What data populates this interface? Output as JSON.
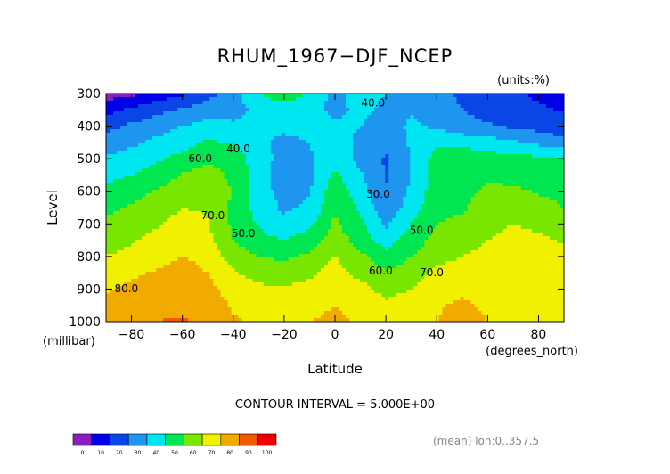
{
  "chart_data": {
    "type": "heatmap",
    "title": "RHUM_1967−DJF_NCEP",
    "units_label": "(units:%)",
    "ylabel": "Level",
    "y_unit_label": "(millibar)",
    "xlabel": "Latitude",
    "x_unit_label": "(degrees_north)",
    "contour_interval_text": "CONTOUR INTERVAL = 5.000E+00",
    "footnote": "(mean) lon:0..357.5",
    "x_ticks": [
      -80,
      -60,
      -40,
      -20,
      0,
      20,
      40,
      60,
      80
    ],
    "x_tick_labels": [
      "−80",
      "−60",
      "−40",
      "−20",
      "0",
      "20",
      "40",
      "60",
      "80"
    ],
    "y_ticks": [
      300,
      400,
      500,
      600,
      700,
      800,
      900,
      1000
    ],
    "y_tick_labels": [
      "300",
      "400",
      "500",
      "600",
      "700",
      "800",
      "900",
      "1000"
    ],
    "xlim": [
      -90,
      90
    ],
    "ylim": [
      1000,
      300
    ],
    "levels": [
      0,
      10,
      20,
      30,
      40,
      50,
      60,
      70,
      80,
      90,
      100
    ],
    "colorbar_labels": [
      "0",
      "10",
      "20",
      "30",
      "40",
      "50",
      "60",
      "70",
      "80",
      "90",
      "100"
    ],
    "colors": [
      "#8a1fc0",
      "#0000e6",
      "#0a46e6",
      "#1e96f0",
      "#00e6f0",
      "#00e650",
      "#78e600",
      "#f0f000",
      "#f0aa00",
      "#f05a00",
      "#f00000"
    ],
    "contour_labels": [
      {
        "text": "40.0",
        "lat": -38,
        "lev": 480
      },
      {
        "text": "40.0",
        "lat": 15,
        "lev": 340
      },
      {
        "text": "30.0",
        "lat": 17,
        "lev": 620
      },
      {
        "text": "50.0",
        "lat": -36,
        "lev": 740
      },
      {
        "text": "50.0",
        "lat": 34,
        "lev": 730
      },
      {
        "text": "60.0",
        "lat": -53,
        "lev": 510
      },
      {
        "text": "60.0",
        "lat": 18,
        "lev": 855
      },
      {
        "text": "70.0",
        "lat": -48,
        "lev": 685
      },
      {
        "text": "70.0",
        "lat": 38,
        "lev": 860
      },
      {
        "text": "80.0",
        "lat": -82,
        "lev": 910
      }
    ],
    "lat_grid": [
      -90,
      -80,
      -70,
      -60,
      -50,
      -40,
      -30,
      -20,
      -10,
      0,
      10,
      20,
      30,
      40,
      50,
      60,
      70,
      80,
      90
    ],
    "lev_grid": [
      300,
      350,
      400,
      450,
      500,
      550,
      600,
      650,
      700,
      750,
      800,
      850,
      900,
      950,
      1000
    ],
    "values": [
      [
        5,
        8,
        14,
        18,
        26,
        36,
        50,
        55,
        49,
        36,
        45,
        40,
        37,
        33,
        28,
        25,
        22,
        18,
        15
      ],
      [
        16,
        22,
        27,
        31,
        36,
        36,
        43,
        46,
        42,
        38,
        42,
        38,
        39,
        34,
        30,
        27,
        24,
        22,
        19
      ],
      [
        27,
        32,
        36,
        40,
        44,
        42,
        41,
        43,
        44,
        42,
        40,
        35,
        42,
        38,
        33,
        31,
        28,
        26,
        24
      ],
      [
        34,
        38,
        42,
        46,
        51,
        49,
        43,
        37,
        40,
        44,
        38,
        31,
        42,
        49,
        47,
        45,
        41,
        38,
        32
      ],
      [
        41,
        45,
        49,
        53,
        58,
        56,
        45,
        36,
        39,
        47,
        37,
        29,
        40,
        54,
        56,
        55,
        53,
        52,
        53
      ],
      [
        47,
        50,
        54,
        61,
        64,
        58,
        44,
        35,
        38,
        52,
        41,
        29,
        40,
        55,
        58,
        59,
        57,
        55,
        58
      ],
      [
        53,
        56,
        61,
        66,
        68,
        59,
        45,
        36,
        39,
        56,
        44,
        30,
        42,
        56,
        58,
        61,
        62,
        59,
        58
      ],
      [
        58,
        61,
        66,
        70,
        69,
        58,
        46,
        38,
        42,
        59,
        48,
        33,
        45,
        57,
        59,
        64,
        66,
        63,
        60
      ],
      [
        62,
        65,
        69,
        73,
        71,
        58,
        49,
        43,
        48,
        62,
        52,
        38,
        50,
        60,
        62,
        67,
        70,
        68,
        65
      ],
      [
        66,
        69,
        73,
        76,
        73,
        60,
        53,
        50,
        55,
        65,
        56,
        45,
        55,
        63,
        66,
        70,
        73,
        72,
        69
      ],
      [
        70,
        73,
        77,
        80,
        77,
        65,
        60,
        58,
        62,
        70,
        62,
        54,
        60,
        67,
        70,
        73,
        74,
        75,
        73
      ],
      [
        75,
        78,
        81,
        84,
        80,
        71,
        66,
        65,
        68,
        74,
        67,
        61,
        65,
        72,
        74,
        73,
        72,
        75,
        74
      ],
      [
        79,
        82,
        85,
        86,
        83,
        76,
        72,
        71,
        73,
        77,
        73,
        67,
        70,
        76,
        78,
        75,
        72,
        74,
        75
      ],
      [
        82,
        85,
        88,
        88,
        85,
        79,
        77,
        76,
        77,
        80,
        77,
        72,
        74,
        79,
        82,
        78,
        74,
        75,
        76
      ],
      [
        84,
        88,
        90,
        91,
        87,
        81,
        79,
        79,
        80,
        82,
        79,
        75,
        76,
        80,
        84,
        80,
        75,
        76,
        78
      ]
    ]
  }
}
